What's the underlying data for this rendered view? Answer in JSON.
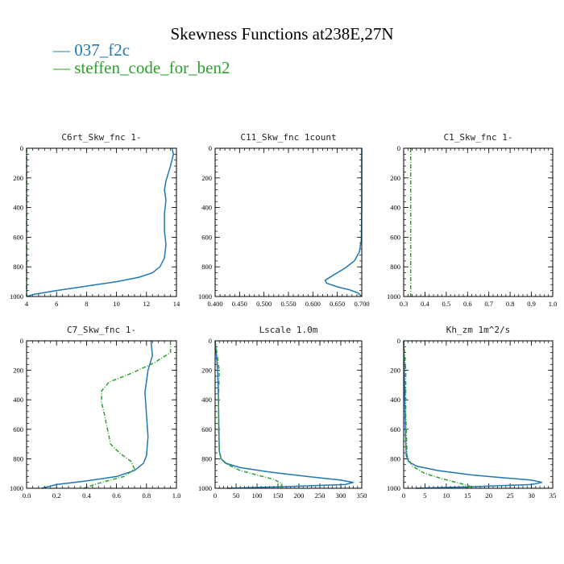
{
  "figure": {
    "title": "Skewness Functions at238E,27N",
    "legend": [
      {
        "label": "037_f2c",
        "color": "#1f77b4"
      },
      {
        "label": "steffen_code_for_ben2",
        "color": "#2ca02c"
      }
    ]
  },
  "chart_data": [
    {
      "type": "line",
      "title": "C6rt_Skw_fnc   1-",
      "xlim": [
        4,
        14
      ],
      "ylim": [
        1000,
        0
      ],
      "xticks": [
        "4",
        "6",
        "8",
        "10",
        "12",
        "14"
      ],
      "xtick_values": [
        4,
        6,
        8,
        10,
        12,
        14
      ],
      "yticks": [
        "0",
        "200",
        "400",
        "600",
        "800",
        "1000"
      ],
      "ytick_values": [
        0,
        200,
        400,
        600,
        800,
        1000
      ],
      "series": [
        {
          "name": "037_f2c",
          "points": [
            [
              13.7,
              0
            ],
            [
              13.8,
              40
            ],
            [
              13.6,
              120
            ],
            [
              13.3,
              220
            ],
            [
              13.2,
              280
            ],
            [
              13.3,
              350
            ],
            [
              13.2,
              440
            ],
            [
              13.2,
              560
            ],
            [
              13.3,
              650
            ],
            [
              13.2,
              740
            ],
            [
              12.9,
              800
            ],
            [
              12.4,
              840
            ],
            [
              11.5,
              870
            ],
            [
              10.0,
              900
            ],
            [
              8.0,
              930
            ],
            [
              6.0,
              960
            ],
            [
              4.5,
              985
            ],
            [
              4.0,
              1000
            ]
          ]
        },
        {
          "name": "steffen_code_for_ben2",
          "points": [
            [
              4.0,
              0
            ],
            [
              4.0,
              1000
            ]
          ]
        }
      ]
    },
    {
      "type": "line",
      "title": "C11_Skw_fnc   1count",
      "xlim": [
        0.4,
        0.7
      ],
      "ylim": [
        1000,
        0
      ],
      "xticks": [
        "0.400",
        "0.450",
        "0.500",
        "0.550",
        "0.600",
        "0.650",
        "0.700"
      ],
      "xtick_values": [
        0.4,
        0.45,
        0.5,
        0.55,
        0.6,
        0.65,
        0.7
      ],
      "yticks": [
        "0",
        "200",
        "400",
        "600",
        "800",
        "1000"
      ],
      "ytick_values": [
        0,
        200,
        400,
        600,
        800,
        1000
      ],
      "series": [
        {
          "name": "037_f2c",
          "points": [
            [
              0.7,
              0
            ],
            [
              0.7,
              400
            ],
            [
              0.699,
              620
            ],
            [
              0.695,
              700
            ],
            [
              0.685,
              760
            ],
            [
              0.665,
              810
            ],
            [
              0.64,
              860
            ],
            [
              0.625,
              890
            ],
            [
              0.628,
              910
            ],
            [
              0.65,
              935
            ],
            [
              0.675,
              955
            ],
            [
              0.692,
              975
            ],
            [
              0.7,
              1000
            ]
          ]
        },
        {
          "name": "steffen_code_for_ben2",
          "points": []
        }
      ]
    },
    {
      "type": "line",
      "title": "C1_Skw_fnc   1-",
      "xlim": [
        0.3,
        1.0
      ],
      "ylim": [
        1000,
        0
      ],
      "xticks": [
        "0.3",
        "0.4",
        "0.5",
        "0.6",
        "0.7",
        "0.8",
        "0.9",
        "1.0"
      ],
      "xtick_values": [
        0.3,
        0.4,
        0.5,
        0.6,
        0.7,
        0.8,
        0.9,
        1.0
      ],
      "yticks": [
        "0",
        "200",
        "400",
        "600",
        "800",
        "1000"
      ],
      "ytick_values": [
        0,
        200,
        400,
        600,
        800,
        1000
      ],
      "series": [
        {
          "name": "037_f2c",
          "points": []
        },
        {
          "name": "steffen_code_for_ben2",
          "points": [
            [
              0.333,
              0
            ],
            [
              0.333,
              1000
            ]
          ]
        }
      ]
    },
    {
      "type": "line",
      "title": "C7_Skw_fnc   1-",
      "xlim": [
        0.0,
        1.0
      ],
      "ylim": [
        1000,
        0
      ],
      "xticks": [
        "0.0",
        "0.2",
        "0.4",
        "0.6",
        "0.8",
        "1.0"
      ],
      "xtick_values": [
        0.0,
        0.2,
        0.4,
        0.6,
        0.8,
        1.0
      ],
      "yticks": [
        "0",
        "200",
        "400",
        "600",
        "800",
        "1000"
      ],
      "ytick_values": [
        0,
        200,
        400,
        600,
        800,
        1000
      ],
      "series": [
        {
          "name": "037_f2c",
          "points": [
            [
              0.83,
              0
            ],
            [
              0.84,
              100
            ],
            [
              0.81,
              200
            ],
            [
              0.79,
              350
            ],
            [
              0.8,
              500
            ],
            [
              0.81,
              650
            ],
            [
              0.8,
              780
            ],
            [
              0.78,
              830
            ],
            [
              0.72,
              880
            ],
            [
              0.6,
              920
            ],
            [
              0.4,
              950
            ],
            [
              0.2,
              975
            ],
            [
              0.1,
              1000
            ]
          ]
        },
        {
          "name": "steffen_code_for_ben2",
          "points": [
            [
              0.96,
              0
            ],
            [
              0.96,
              80
            ],
            [
              0.85,
              150
            ],
            [
              0.7,
              220
            ],
            [
              0.55,
              280
            ],
            [
              0.5,
              340
            ],
            [
              0.5,
              420
            ],
            [
              0.52,
              500
            ],
            [
              0.54,
              600
            ],
            [
              0.56,
              700
            ],
            [
              0.62,
              760
            ],
            [
              0.7,
              820
            ],
            [
              0.72,
              870
            ],
            [
              0.65,
              920
            ],
            [
              0.5,
              960
            ],
            [
              0.38,
              1000
            ]
          ]
        }
      ]
    },
    {
      "type": "line",
      "title": "Lscale   1.0m",
      "xlim": [
        0,
        350
      ],
      "ylim": [
        1000,
        0
      ],
      "xticks": [
        "0",
        "50",
        "100",
        "150",
        "200",
        "250",
        "300",
        "350"
      ],
      "xtick_values": [
        0,
        50,
        100,
        150,
        200,
        250,
        300,
        350
      ],
      "yticks": [
        "0",
        "200",
        "400",
        "600",
        "800",
        "1000"
      ],
      "ytick_values": [
        0,
        200,
        400,
        600,
        800,
        1000
      ],
      "series": [
        {
          "name": "037_f2c",
          "points": [
            [
              0,
              0
            ],
            [
              3,
              100
            ],
            [
              6,
              200
            ],
            [
              8,
              400
            ],
            [
              9,
              600
            ],
            [
              10,
              750
            ],
            [
              14,
              800
            ],
            [
              25,
              830
            ],
            [
              60,
              860
            ],
            [
              130,
              890
            ],
            [
              220,
              920
            ],
            [
              300,
              945
            ],
            [
              330,
              960
            ],
            [
              310,
              975
            ],
            [
              150,
              990
            ],
            [
              30,
              1000
            ]
          ]
        },
        {
          "name": "steffen_code_for_ben2",
          "points": [
            [
              0,
              0
            ],
            [
              5,
              100
            ],
            [
              10,
              200
            ],
            [
              8,
              400
            ],
            [
              8,
              600
            ],
            [
              10,
              750
            ],
            [
              15,
              800
            ],
            [
              30,
              840
            ],
            [
              60,
              880
            ],
            [
              100,
              910
            ],
            [
              140,
              940
            ],
            [
              160,
              970
            ],
            [
              155,
              1000
            ]
          ]
        }
      ]
    },
    {
      "type": "line",
      "title": "Kh_zm   1m^2/s",
      "xlim": [
        0,
        35
      ],
      "ylim": [
        1000,
        0
      ],
      "xticks": [
        "0",
        "5",
        "10",
        "15",
        "20",
        "25",
        "30",
        "35"
      ],
      "xtick_values": [
        0,
        5,
        10,
        15,
        20,
        25,
        30,
        35
      ],
      "yticks": [
        "0",
        "200",
        "400",
        "600",
        "800",
        "1000"
      ],
      "ytick_values": [
        0,
        200,
        400,
        600,
        800,
        1000
      ],
      "series": [
        {
          "name": "037_f2c",
          "points": [
            [
              0,
              0
            ],
            [
              0.2,
              300
            ],
            [
              0.4,
              600
            ],
            [
              0.6,
              780
            ],
            [
              1.2,
              820
            ],
            [
              3,
              850
            ],
            [
              8,
              880
            ],
            [
              16,
              910
            ],
            [
              24,
              930
            ],
            [
              30,
              945
            ],
            [
              32.5,
              960
            ],
            [
              30,
              975
            ],
            [
              15,
              990
            ],
            [
              3,
              1000
            ]
          ]
        },
        {
          "name": "steffen_code_for_ben2",
          "points": [
            [
              0,
              0
            ],
            [
              0.5,
              200
            ],
            [
              0.5,
              500
            ],
            [
              0.8,
              780
            ],
            [
              2,
              850
            ],
            [
              5,
              900
            ],
            [
              9,
              935
            ],
            [
              13,
              965
            ],
            [
              16,
              990
            ],
            [
              14,
              1000
            ]
          ]
        }
      ]
    }
  ]
}
